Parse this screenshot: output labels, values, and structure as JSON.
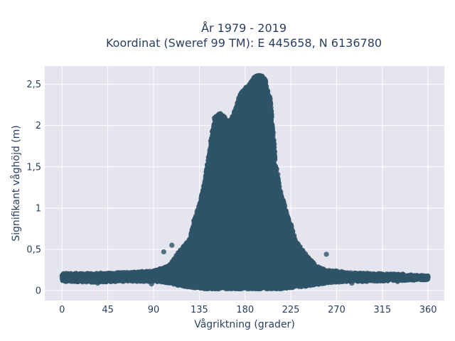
{
  "chart_data": {
    "type": "scatter",
    "title_lines": [
      "År 1979 - 2019",
      "Koordinat (Sweref 99 TM): E 445658, N 6136780"
    ],
    "xlabel": "Vågriktning (grader)",
    "ylabel": "Signifikant våghöjd (m)",
    "xlim": [
      -17,
      376
    ],
    "ylim": [
      -0.12,
      2.72
    ],
    "xticks": [
      0,
      45,
      90,
      135,
      180,
      225,
      270,
      315,
      360
    ],
    "yticks": [
      0,
      0.5,
      1,
      1.5,
      2,
      2.5
    ],
    "ytick_labels": [
      "0",
      "0,5",
      "1",
      "1,5",
      "2",
      "2,5"
    ],
    "grid": true,
    "plot_background": "#e5e5f0",
    "marker_color": "#2f5468",
    "envelope": {
      "x": [
        0,
        30,
        60,
        90,
        105,
        115,
        125,
        130,
        135,
        140,
        145,
        150,
        155,
        160,
        165,
        170,
        175,
        180,
        185,
        190,
        195,
        200,
        205,
        210,
        215,
        220,
        225,
        230,
        240,
        250,
        260,
        270,
        280,
        300,
        330,
        360
      ],
      "y_max": [
        0.21,
        0.21,
        0.22,
        0.24,
        0.3,
        0.47,
        0.62,
        0.85,
        1.05,
        1.3,
        1.7,
        2.1,
        2.15,
        2.1,
        2.05,
        2.18,
        2.38,
        2.45,
        2.52,
        2.6,
        2.62,
        2.55,
        2.3,
        1.55,
        1.2,
        0.98,
        0.8,
        0.6,
        0.43,
        0.3,
        0.25,
        0.24,
        0.22,
        0.21,
        0.2,
        0.18
      ],
      "y_min": [
        0.11,
        0.1,
        0.11,
        0.11,
        0.09,
        0.06,
        0.04,
        0.03,
        0.03,
        0.02,
        0.02,
        0.02,
        0.02,
        0.02,
        0.02,
        0.02,
        0.02,
        0.02,
        0.02,
        0.02,
        0.02,
        0.02,
        0.02,
        0.02,
        0.02,
        0.03,
        0.03,
        0.04,
        0.05,
        0.07,
        0.09,
        0.1,
        0.11,
        0.11,
        0.12,
        0.13
      ]
    },
    "sparse_points": [
      {
        "x": 0,
        "y": 0.15
      },
      {
        "x": 2,
        "y": 0.12
      },
      {
        "x": 5,
        "y": 0.2
      },
      {
        "x": 8,
        "y": 0.14
      },
      {
        "x": 12,
        "y": 0.17
      },
      {
        "x": 18,
        "y": 0.12
      },
      {
        "x": 25,
        "y": 0.18
      },
      {
        "x": 30,
        "y": 0.13
      },
      {
        "x": 35,
        "y": 0.09
      },
      {
        "x": 38,
        "y": 0.16
      },
      {
        "x": 42,
        "y": 0.19
      },
      {
        "x": 45,
        "y": 0.14
      },
      {
        "x": 48,
        "y": 0.11
      },
      {
        "x": 52,
        "y": 0.17
      },
      {
        "x": 58,
        "y": 0.13
      },
      {
        "x": 62,
        "y": 0.19
      },
      {
        "x": 67,
        "y": 0.14
      },
      {
        "x": 70,
        "y": 0.2
      },
      {
        "x": 75,
        "y": 0.16
      },
      {
        "x": 80,
        "y": 0.18
      },
      {
        "x": 85,
        "y": 0.13
      },
      {
        "x": 88,
        "y": 0.08
      },
      {
        "x": 92,
        "y": 0.21
      },
      {
        "x": 96,
        "y": 0.24
      },
      {
        "x": 100,
        "y": 0.47
      },
      {
        "x": 108,
        "y": 0.55
      },
      {
        "x": 260,
        "y": 0.44
      },
      {
        "x": 275,
        "y": 0.23
      },
      {
        "x": 280,
        "y": 0.15
      },
      {
        "x": 285,
        "y": 0.09
      },
      {
        "x": 290,
        "y": 0.18
      },
      {
        "x": 295,
        "y": 0.11
      },
      {
        "x": 300,
        "y": 0.21
      },
      {
        "x": 305,
        "y": 0.16
      },
      {
        "x": 310,
        "y": 0.12
      },
      {
        "x": 315,
        "y": 0.19
      },
      {
        "x": 320,
        "y": 0.14
      },
      {
        "x": 325,
        "y": 0.18
      },
      {
        "x": 330,
        "y": 0.11
      },
      {
        "x": 335,
        "y": 0.2
      },
      {
        "x": 340,
        "y": 0.15
      },
      {
        "x": 345,
        "y": 0.13
      },
      {
        "x": 350,
        "y": 0.17
      },
      {
        "x": 355,
        "y": 0.16
      },
      {
        "x": 358,
        "y": 0.17
      }
    ]
  }
}
